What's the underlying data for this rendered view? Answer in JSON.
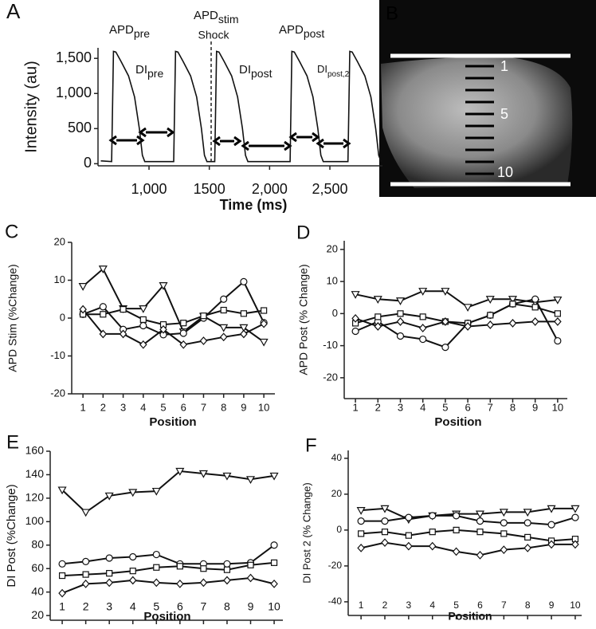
{
  "chart_data": [
    {
      "type": "trace",
      "panel": "A",
      "ylabel": "Intensity (au)",
      "xlabel": "Time (ms)",
      "x": [
        600,
        690,
        705,
        725,
        770,
        830,
        880,
        920,
        945,
        965,
        1205,
        1220,
        1240,
        1285,
        1345,
        1395,
        1435,
        1460,
        1480,
        1545,
        1560,
        1580,
        1625,
        1685,
        1735,
        1775,
        1800,
        1820,
        2170,
        2185,
        2205,
        2250,
        2310,
        2360,
        2400,
        2425,
        2445,
        2650,
        2665,
        2685,
        2730,
        2790,
        2840,
        2880,
        2905,
        2925
      ],
      "values": [
        40,
        30,
        1600,
        1590,
        1450,
        1250,
        950,
        500,
        120,
        30,
        30,
        1600,
        1590,
        1450,
        1250,
        950,
        500,
        120,
        30,
        30,
        1600,
        1590,
        1450,
        1250,
        950,
        500,
        120,
        30,
        30,
        1600,
        1590,
        1450,
        1250,
        950,
        500,
        120,
        30,
        30,
        1600,
        1590,
        1450,
        1250,
        950,
        500,
        120,
        30
      ],
      "color": "#111",
      "xlim": [
        577,
        2936
      ],
      "xticks": [
        {
          "value": 1000,
          "label": "1,000"
        },
        1500,
        {
          "value": 2000,
          "label": "2,000"
        },
        {
          "value": 2500,
          "label": "2,500"
        }
      ],
      "ylim": [
        -30,
        1650
      ],
      "yticks": [
        0,
        500,
        {
          "value": 1000,
          "label": "1,000"
        },
        {
          "value": 1500,
          "label": "1,500"
        }
      ],
      "annotations": [
        {
          "base": "APD",
          "sub": "pre"
        },
        {
          "base": "DI",
          "sub": "pre"
        },
        {
          "base": "APD",
          "sub": "stim"
        },
        {
          "base": "DI",
          "sub": "post"
        },
        {
          "base": "APD",
          "sub": "post"
        },
        {
          "base": "DI",
          "sub": "post,2"
        }
      ],
      "shock_label": "Shock"
    },
    {
      "type": "image",
      "panel": "B",
      "labels": [
        "1",
        "5",
        "10"
      ]
    },
    {
      "type": "line",
      "panel": "C",
      "ylabel": "APD Stim (%Change)",
      "xlabel": "Position",
      "x": [
        1,
        2,
        3,
        4,
        5,
        6,
        7,
        8,
        9,
        10
      ],
      "xlim": [
        0.44,
        10.55
      ],
      "xticks": [
        1,
        2,
        3,
        4,
        5,
        6,
        7,
        8,
        9,
        10
      ],
      "ylim": [
        -20,
        20
      ],
      "yticks": [
        -20,
        -10,
        0,
        10,
        20
      ],
      "series": [
        {
          "marker": "triangle",
          "color": "#111",
          "values": [
            8.4,
            13,
            2.5,
            2.5,
            8.6,
            -3.6,
            0.5,
            -2.5,
            -2.5,
            -6.3
          ]
        },
        {
          "marker": "circle",
          "color": "#111",
          "values": [
            1,
            3,
            -3,
            -2,
            -4.4,
            -4,
            0,
            5,
            9.6,
            -1.2
          ]
        },
        {
          "marker": "square",
          "color": "#111",
          "values": [
            1,
            1,
            2.3,
            -0.4,
            -1.7,
            -1.3,
            0.6,
            2.1,
            1.2,
            2
          ]
        },
        {
          "marker": "diamond",
          "color": "#111",
          "values": [
            2.3,
            -4.2,
            -4.2,
            -7,
            -3,
            -7,
            -6,
            -5,
            -4.2,
            -1.5
          ]
        }
      ]
    },
    {
      "type": "line",
      "panel": "D",
      "ylabel": "APD Post (% Change)",
      "xlabel": "Position",
      "x": [
        1,
        2,
        3,
        4,
        5,
        6,
        7,
        8,
        9,
        10
      ],
      "xlim": [
        0.5,
        10.43
      ],
      "xticks": [
        1,
        2,
        3,
        4,
        5,
        6,
        7,
        8,
        9,
        10
      ],
      "ylim": [
        -26.5,
        22.7
      ],
      "yticks": [
        -20,
        -10,
        0,
        10,
        20
      ],
      "series": [
        {
          "marker": "triangle",
          "color": "#111",
          "values": [
            6,
            4.5,
            4,
            7,
            7,
            2,
            4.5,
            4.5,
            3.5,
            4.3
          ]
        },
        {
          "marker": "circle",
          "color": "#111",
          "values": [
            -5.5,
            -2.5,
            -7,
            -8,
            -10.5,
            -3,
            -0.5,
            3,
            4.5,
            -8.5
          ]
        },
        {
          "marker": "square",
          "color": "#111",
          "values": [
            -3,
            -1,
            0,
            -1,
            -2.5,
            -3,
            -0.5,
            3,
            2,
            0
          ]
        },
        {
          "marker": "diamond",
          "color": "#111",
          "values": [
            -1.5,
            -4,
            -2.5,
            -4.5,
            -2.5,
            -4,
            -3.5,
            -3,
            -2.5,
            -2.5
          ]
        }
      ]
    },
    {
      "type": "line",
      "panel": "E",
      "ylabel": "DI Post (%Change)",
      "xlabel": "Position",
      "x": [
        1,
        2,
        3,
        4,
        5,
        6,
        7,
        8,
        9,
        10
      ],
      "xlim": [
        0.49,
        10.37
      ],
      "xticks": [
        1,
        2,
        3,
        4,
        5,
        6,
        7,
        8,
        9,
        10
      ],
      "ylim": [
        16,
        160
      ],
      "yticks": [
        20,
        40,
        60,
        80,
        100,
        120,
        140,
        160
      ],
      "series": [
        {
          "marker": "triangle",
          "color": "#111",
          "values": [
            127,
            108,
            122,
            125,
            126,
            143,
            141,
            139,
            136,
            139
          ]
        },
        {
          "marker": "circle",
          "color": "#111",
          "values": [
            64,
            66,
            69,
            70,
            72,
            64,
            64,
            64,
            65,
            80
          ]
        },
        {
          "marker": "square",
          "color": "#111",
          "values": [
            54,
            55,
            56,
            58,
            61,
            62,
            60,
            59,
            63,
            65
          ]
        },
        {
          "marker": "diamond",
          "color": "#111",
          "values": [
            39,
            47,
            48,
            50,
            48,
            47,
            48,
            50,
            52,
            47
          ]
        }
      ]
    },
    {
      "type": "line",
      "panel": "F",
      "ylabel": "DI Post 2 (% Change)",
      "xlabel": "Position",
      "x": [
        1,
        2,
        3,
        4,
        5,
        6,
        7,
        8,
        9,
        10
      ],
      "xlim": [
        0.46,
        10.27
      ],
      "xticks": [
        1,
        2,
        3,
        4,
        5,
        6,
        7,
        8,
        9,
        10
      ],
      "ylim": [
        -47.6,
        44.4
      ],
      "yticks": [
        -40,
        -20,
        0,
        20,
        40
      ],
      "series": [
        {
          "marker": "triangle",
          "color": "#111",
          "values": [
            11,
            12,
            6,
            8,
            9,
            9,
            10,
            10,
            12,
            12
          ]
        },
        {
          "marker": "circle",
          "color": "#111",
          "values": [
            5,
            5,
            7,
            8,
            8,
            5,
            4,
            4,
            3,
            7
          ]
        },
        {
          "marker": "square",
          "color": "#111",
          "values": [
            -2,
            -1,
            -3,
            -1,
            0,
            -1,
            -2,
            -4,
            -6,
            -5
          ]
        },
        {
          "marker": "diamond",
          "color": "#111",
          "values": [
            -10,
            -7,
            -9,
            -9,
            -12,
            -14,
            -11,
            -10,
            -8,
            -8
          ]
        }
      ]
    }
  ]
}
